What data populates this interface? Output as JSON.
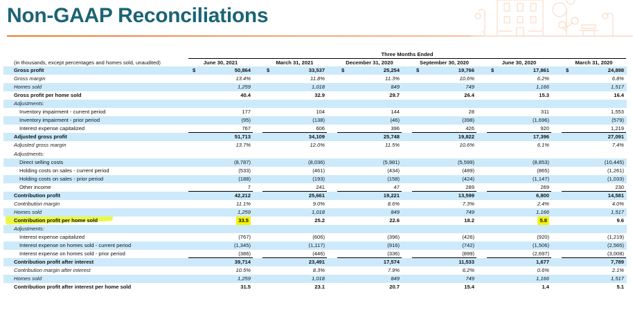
{
  "title": "Non-GAAP Reconciliations",
  "table": {
    "units_note": "(in thousands, except percentages and homes sold, unaudited)",
    "group_header": "Three Months Ended",
    "columns": [
      "June 30, 2021",
      "March 31, 2021",
      "December 31, 2020",
      "September 30, 2020",
      "June 30, 2020",
      "March 31, 2020"
    ],
    "currency_symbol": "$",
    "rows": [
      {
        "label": "Gross profit",
        "type": "bold",
        "dollar": true,
        "values": [
          "50,864",
          "33,537",
          "25,254",
          "19,766",
          "17,861",
          "24,898"
        ]
      },
      {
        "label": "Gross margin",
        "type": "italic",
        "values": [
          "13.4%",
          "11.8%",
          "11.3%",
          "10.6%",
          "6.2%",
          "6.8%"
        ]
      },
      {
        "label": "Homes sold",
        "type": "italic",
        "values": [
          "1,259",
          "1,018",
          "849",
          "749",
          "1,166",
          "1,517"
        ]
      },
      {
        "label": "Gross profit per home sold",
        "type": "bold",
        "values": [
          "40.4",
          "32.9",
          "29.7",
          "26.4",
          "15.3",
          "16.4"
        ]
      },
      {
        "label": "Adjustments:",
        "type": "italic",
        "values": [
          "",
          "",
          "",
          "",
          "",
          ""
        ]
      },
      {
        "label": "Inventory impairment - current period",
        "type": "indent",
        "values": [
          "177",
          "104",
          "144",
          "28",
          "311",
          "1,553"
        ]
      },
      {
        "label": "Inventory impairment - prior period",
        "type": "indent",
        "values": [
          "(95)",
          "(138)",
          "(46)",
          "(398)",
          "(1,696)",
          "(579)"
        ]
      },
      {
        "label": "Interest expense capitalized",
        "type": "indent",
        "underline": true,
        "values": [
          "767",
          "606",
          "396",
          "426",
          "920",
          "1,219"
        ]
      },
      {
        "label": "Adjusted gross profit",
        "type": "bold",
        "values": [
          "51,713",
          "34,109",
          "25,748",
          "19,822",
          "17,396",
          "27,091"
        ]
      },
      {
        "label": "Adjusted gross margin",
        "type": "italic",
        "values": [
          "13.7%",
          "12.0%",
          "11.5%",
          "10.6%",
          "6.1%",
          "7.4%"
        ]
      },
      {
        "label": "Adjustments:",
        "type": "italic",
        "values": [
          "",
          "",
          "",
          "",
          "",
          ""
        ]
      },
      {
        "label": "Direct selling costs",
        "type": "indent",
        "values": [
          "(8,787)",
          "(8,036)",
          "(5,981)",
          "(5,599)",
          "(8,853)",
          "(10,445)"
        ]
      },
      {
        "label": "Holding costs on sales - current period",
        "type": "indent",
        "values": [
          "(533)",
          "(461)",
          "(434)",
          "(489)",
          "(865)",
          "(1,261)"
        ]
      },
      {
        "label": "Holding costs on sales - prior period",
        "type": "indent",
        "values": [
          "(188)",
          "(193)",
          "(158)",
          "(424)",
          "(1,147)",
          "(1,033)"
        ]
      },
      {
        "label": "Other income",
        "type": "indent",
        "underline": true,
        "values": [
          "7",
          "241",
          "47",
          "289",
          "269",
          "230"
        ]
      },
      {
        "label": "Contribution profit",
        "type": "bold",
        "values": [
          "42,212",
          "25,661",
          "19,221",
          "13,599",
          "6,800",
          "14,581"
        ]
      },
      {
        "label": "Contribution margin",
        "type": "italic",
        "values": [
          "11.1%",
          "9.0%",
          "8.6%",
          "7.3%",
          "2.4%",
          "4.0%"
        ]
      },
      {
        "label": "Homes sold",
        "type": "italic",
        "values": [
          "1,259",
          "1,018",
          "849",
          "749",
          "1,166",
          "1,517"
        ]
      },
      {
        "label": "Contribution profit per home sold",
        "type": "bold",
        "highlight": [
          0,
          4
        ],
        "values": [
          "33.5",
          "25.2",
          "22.6",
          "18.2",
          "5.8",
          "9.6"
        ]
      },
      {
        "label": "Adjustments:",
        "type": "italic",
        "values": [
          "",
          "",
          "",
          "",
          "",
          ""
        ]
      },
      {
        "label": "Interest expense capitalized",
        "type": "indent",
        "values": [
          "(767)",
          "(606)",
          "(396)",
          "(426)",
          "(920)",
          "(1,219)"
        ]
      },
      {
        "label": "Interest expense on homes sold - current period",
        "type": "indent",
        "values": [
          "(1,345)",
          "(1,117)",
          "(916)",
          "(742)",
          "(1,506)",
          "(2,565)"
        ]
      },
      {
        "label": "Interest expense on homes sold - prior period",
        "type": "indent",
        "underline": true,
        "values": [
          "(386)",
          "(446)",
          "(336)",
          "(899)",
          "(2,697)",
          "(3,008)"
        ]
      },
      {
        "label": "Contribution profit after interest",
        "type": "bold",
        "values": [
          "39,714",
          "23,491",
          "17,574",
          "11,533",
          "1,677",
          "7,789"
        ]
      },
      {
        "label": "Contribution margin after interest",
        "type": "italic",
        "values": [
          "10.5%",
          "8.3%",
          "7.9%",
          "6.2%",
          "0.6%",
          "2.1%"
        ]
      },
      {
        "label": "Homes sold",
        "type": "italic",
        "values": [
          "1,259",
          "1,018",
          "849",
          "749",
          "1,166",
          "1,517"
        ]
      },
      {
        "label": "Contribution profit after interest per home sold",
        "type": "bold",
        "values": [
          "31.5",
          "23.1",
          "20.7",
          "15.4",
          "1.4",
          "5.1"
        ]
      }
    ]
  },
  "colors": {
    "title": "#1b6474",
    "accent": "#e8782f",
    "row_shade": "#cdeafb",
    "highlight": "#f7f200"
  }
}
